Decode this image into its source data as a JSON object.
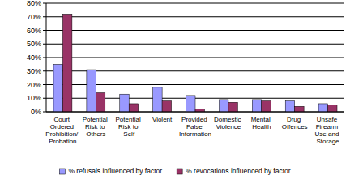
{
  "chart_data": {
    "type": "bar",
    "categories": [
      "Court Ordered Prohibition/ Probation",
      "Potential Risk to Others",
      "Potential Risk to Self",
      "Violent",
      "Provided False Information",
      "Domestic Violence",
      "Mental Health",
      "Drug Offences",
      "Unsafe Firearm Use and Storage"
    ],
    "series": [
      {
        "name": "% refusals influenced by factor",
        "color": "#9999ff",
        "values": [
          35,
          31,
          13,
          18,
          12,
          9,
          9,
          8,
          6
        ]
      },
      {
        "name": "% revocations influenced by factor",
        "color": "#993366",
        "values": [
          72,
          14,
          6,
          8,
          2,
          7,
          8,
          4,
          5
        ]
      }
    ],
    "ylim": [
      0,
      80
    ],
    "yticks": [
      {
        "value": 0,
        "label": "0%"
      },
      {
        "value": 10,
        "label": "10%"
      },
      {
        "value": 20,
        "label": "20%"
      },
      {
        "value": 30,
        "label": "30%"
      },
      {
        "value": 40,
        "label": "40%"
      },
      {
        "value": 50,
        "label": "50%"
      },
      {
        "value": 60,
        "label": "60%"
      },
      {
        "value": 70,
        "label": "70%"
      },
      {
        "value": 80,
        "label": "80%"
      }
    ],
    "grid": true,
    "legend": "bottom"
  }
}
